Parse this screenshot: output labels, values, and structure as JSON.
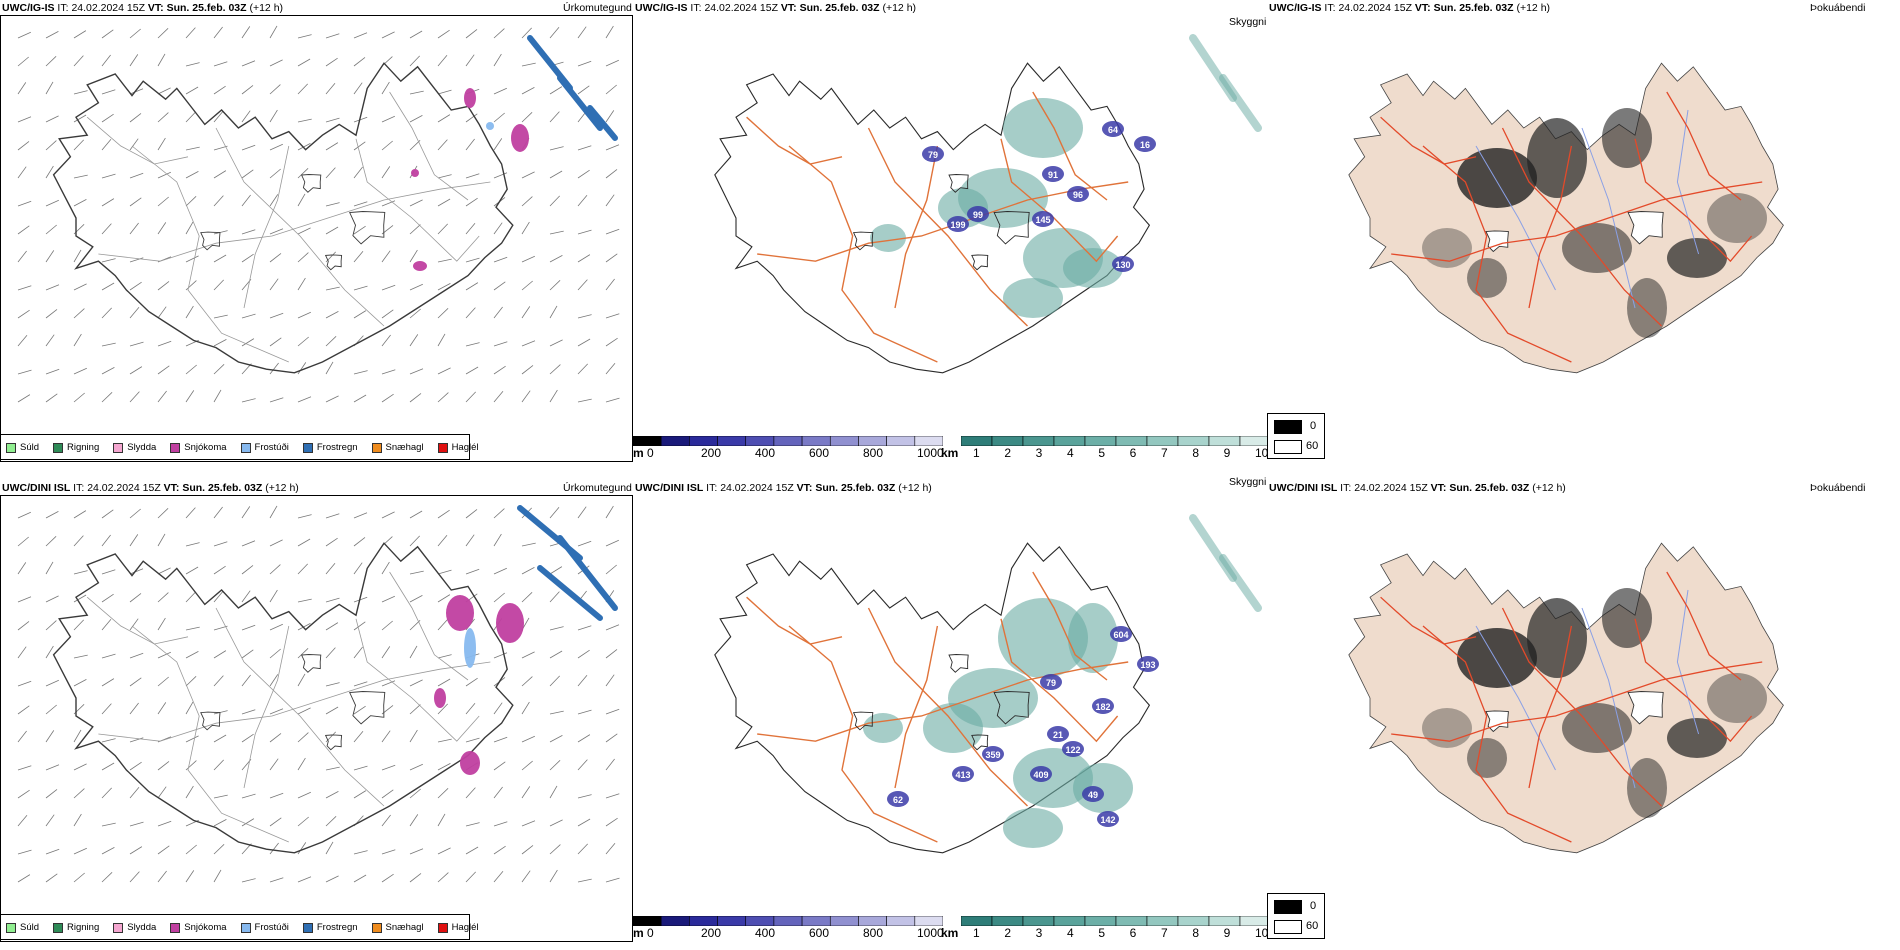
{
  "panels": [
    {
      "id": "ig-precip",
      "title_model": "UWC/IG-IS",
      "title_it_label": "IT:",
      "title_it": "24.02.2024 15Z",
      "title_vt_label": "VT:",
      "title_vt": "Sun. 25.feb. 03Z",
      "title_lead": "(+12 h)",
      "right_label": "Úrkomutegund"
    },
    {
      "id": "ig-cloud",
      "title_model": "UWC/IG-IS",
      "title_it_label": "IT:",
      "title_it": "24.02.2024 15Z",
      "title_vt_label": "VT:",
      "title_vt": "Sun. 25.feb. 03Z",
      "title_lead": "(+12 h)",
      "right_label": "Skyggni"
    },
    {
      "id": "ig-fog",
      "title_model": "UWC/IG-IS",
      "title_it_label": "IT:",
      "title_it": "24.02.2024 15Z",
      "title_vt_label": "VT:",
      "title_vt": "Sun. 25.feb. 03Z",
      "title_lead": "(+12 h)",
      "right_label": "Þokuábendi"
    },
    {
      "id": "dini-precip",
      "title_model": "UWC/DINI ISL",
      "title_it_label": "IT:",
      "title_it": "24.02.2024 15Z",
      "title_vt_label": "VT:",
      "title_vt": "Sun. 25.feb. 03Z",
      "title_lead": "(+12 h)",
      "right_label": "Úrkomutegund"
    },
    {
      "id": "dini-cloud",
      "title_model": "UWC/DINI ISL",
      "title_it_label": "IT:",
      "title_it": "24.02.2024 15Z",
      "title_vt_label": "VT:",
      "title_vt": "Sun. 25.feb. 03Z",
      "title_lead": "(+12 h)",
      "right_label": "Skyggni"
    },
    {
      "id": "dini-fog",
      "title_model": "UWC/DINI ISL",
      "title_it_label": "IT:",
      "title_it": "24.02.2024 15Z",
      "title_vt_label": "VT:",
      "title_vt": "Sun. 25.feb. 03Z",
      "title_lead": "(+12 h)",
      "right_label": "Þokuábendi"
    }
  ],
  "precip_legend": [
    {
      "label": "Súld",
      "color": "#90ee90"
    },
    {
      "label": "Rigning",
      "color": "#2e8b57"
    },
    {
      "label": "Slydda",
      "color": "#f4a6d0"
    },
    {
      "label": "Snjókoma",
      "color": "#c03fa0"
    },
    {
      "label": "Frostúði",
      "color": "#87b9ef"
    },
    {
      "label": "Frostregn",
      "color": "#2f6fb4"
    },
    {
      "label": "Snæhagl",
      "color": "#ef8c1e"
    },
    {
      "label": "Haglél",
      "color": "#e01010"
    }
  ],
  "ceiling_bar": {
    "unit": "m",
    "ticks": [
      "0",
      "200",
      "400",
      "600",
      "800",
      "1000"
    ],
    "colors": [
      "#000000",
      "#1a1a7a",
      "#2a2a9a",
      "#3a3aa8",
      "#4e4eb2",
      "#6464bc",
      "#7a7ac6",
      "#9090d0",
      "#a8a8da",
      "#c2c2e6",
      "#dcdcf0"
    ]
  },
  "visibility_bar": {
    "unit": "km",
    "ticks": [
      "1",
      "2",
      "3",
      "4",
      "5",
      "6",
      "7",
      "8",
      "9",
      "10"
    ],
    "colors": [
      "#2e7d78",
      "#3c8a84",
      "#4b968f",
      "#5aa39b",
      "#6cafa7",
      "#7fbbb3",
      "#93c7bf",
      "#a8d3cc",
      "#bfdfd9",
      "#d8ebe7"
    ]
  },
  "fog_legend": [
    {
      "label": "0",
      "color": "#000000"
    },
    {
      "label": "60",
      "color": "#ffffff"
    }
  ],
  "map_labels_ig": [
    "79",
    "99",
    "91",
    "199",
    "145",
    "96",
    "16",
    "130",
    "64"
  ],
  "map_labels_dini": [
    "604",
    "193",
    "79",
    "182",
    "122",
    "21",
    "359",
    "413",
    "409",
    "142",
    "49",
    "62"
  ],
  "colors": {
    "land_fog": "#efdccd",
    "road": "#e0733a",
    "road_fog": "#e34a2a",
    "coast": "#3a3a3a",
    "river": "#8aa0e6",
    "ceiling": "#3b3ba8",
    "visibility": "#6aaba3"
  }
}
